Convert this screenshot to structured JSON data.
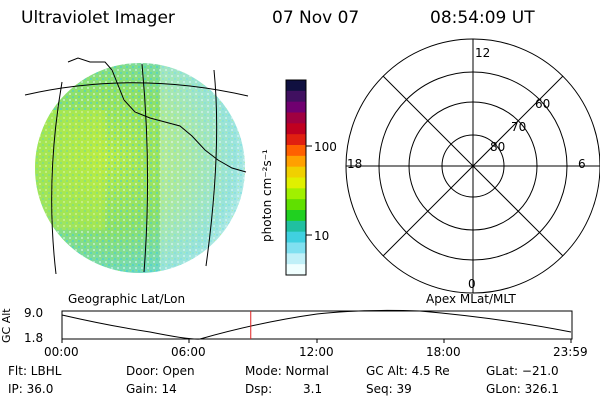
{
  "header": {
    "title": "Ultraviolet Imager",
    "date": "07 Nov 07",
    "time": "08:54:09 UT"
  },
  "colorbar": {
    "unit_label": "photon cm⁻²s⁻¹",
    "ticks": [
      "100",
      "10"
    ],
    "colors": [
      "#101040",
      "#401060",
      "#700070",
      "#a00040",
      "#c00020",
      "#e02010",
      "#ff6000",
      "#ffa000",
      "#f0d000",
      "#e0f000",
      "#a0f000",
      "#60e000",
      "#20d020",
      "#20c0a0",
      "#40d0e0",
      "#80e0f0",
      "#c0f0f8",
      "#f0ffff"
    ]
  },
  "polar": {
    "labels": {
      "top": "12",
      "left": "18",
      "right": "6",
      "bottom": "0"
    },
    "latitudes": [
      "60",
      "70",
      "80"
    ]
  },
  "footer_labels": {
    "geographic": "Geographic Lat/Lon",
    "apex": "Apex MLat/MLT"
  },
  "alt_plot": {
    "ylabel": "GC Alt",
    "ymax": "9.0",
    "ymin": "1.8",
    "xticks": [
      "00:00",
      "06:00",
      "12:00",
      "18:00",
      "23:59"
    ],
    "marker_time_hours": 8.9,
    "line_color": "#000000",
    "marker_color": "#e02020"
  },
  "info": {
    "flt": "Flt: LBHL",
    "door": "Door: Open",
    "mode": "Mode: Normal",
    "gcalt": "GC Alt: 4.5 Re",
    "glat": "GLat: −21.0",
    "ip": "IP: 36.0",
    "gain": "Gain: 14",
    "dsp_label": "Dsp:",
    "dsp_value": "3.1",
    "seq": "Seq: 39",
    "glon": "GLon: 326.1"
  },
  "colors": {
    "disk_base": "#9ee84a",
    "disk_speckle": "#60d8e0"
  }
}
